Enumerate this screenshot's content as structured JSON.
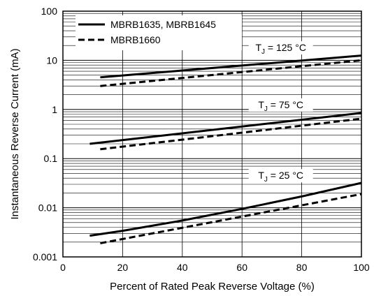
{
  "chart_data": {
    "type": "line",
    "xlabel": "Percent of Rated Peak Reverse Voltage (%)",
    "ylabel": "Instantaneous Reverse Current (mA)",
    "xlim": [
      0,
      100
    ],
    "ylim": [
      0.001,
      100
    ],
    "y_scale": "log",
    "grid": true,
    "legend_position": "top-left",
    "x_ticks": [
      "0",
      "20",
      "40",
      "60",
      "80",
      "100"
    ],
    "y_ticks": [
      "0.001",
      "0.01",
      "0.1",
      "1",
      "10",
      "100"
    ],
    "legend": [
      {
        "label": "MBRB1635, MBRB1645",
        "style": "solid"
      },
      {
        "label": "MBRB1660",
        "style": "dashed"
      }
    ],
    "annotations": [
      {
        "id": "tj125",
        "prefix": "T",
        "sub": "J",
        "text": " = 125 °C",
        "x": 73,
        "y": 16
      },
      {
        "id": "tj75",
        "prefix": "T",
        "sub": "J",
        "text": " = 75 °C",
        "x": 73,
        "y": 1.1
      },
      {
        "id": "tj25",
        "prefix": "T",
        "sub": "J",
        "text": " = 25 °C",
        "x": 73,
        "y": 0.04
      }
    ],
    "series": [
      {
        "style": "solid",
        "group": "125 °C",
        "x": [
          12.5,
          100
        ],
        "y": [
          4.5,
          12.5
        ]
      },
      {
        "style": "dashed",
        "group": "125 °C",
        "x": [
          12.5,
          100
        ],
        "y": [
          3.0,
          10.0
        ]
      },
      {
        "style": "solid",
        "group": "75 °C",
        "x": [
          9,
          100
        ],
        "y": [
          0.2,
          0.85
        ]
      },
      {
        "style": "dashed",
        "group": "75 °C",
        "x": [
          12.5,
          100
        ],
        "y": [
          0.155,
          0.65
        ]
      },
      {
        "style": "solid",
        "group": "25 °C",
        "x": [
          9,
          20,
          40,
          60,
          80,
          100
        ],
        "y": [
          0.0027,
          0.0034,
          0.0055,
          0.0095,
          0.017,
          0.032
        ]
      },
      {
        "style": "dashed",
        "group": "25 °C",
        "x": [
          12.5,
          100
        ],
        "y": [
          0.0019,
          0.019
        ]
      }
    ],
    "colors": {
      "line": "#000000",
      "grid": "#000000",
      "background": "#ffffff"
    }
  }
}
